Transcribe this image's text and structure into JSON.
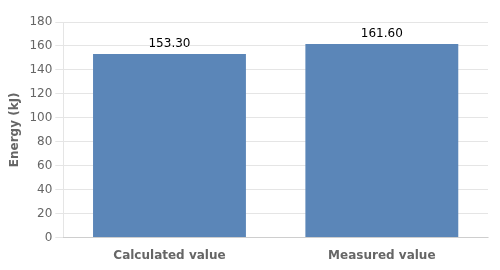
{
  "chart_data": {
    "type": "bar",
    "categories": [
      "Calculated value",
      "Measured value"
    ],
    "values": [
      153.3,
      161.6
    ],
    "value_labels": [
      "153.30",
      "161.60"
    ],
    "data_labels": true,
    "color": "#5b86b8",
    "ylabel": "Energy (kJ)",
    "ylim": [
      0,
      180
    ],
    "yticks": [
      0,
      20,
      40,
      60,
      80,
      100,
      120,
      140,
      160,
      180
    ],
    "grid": true
  }
}
